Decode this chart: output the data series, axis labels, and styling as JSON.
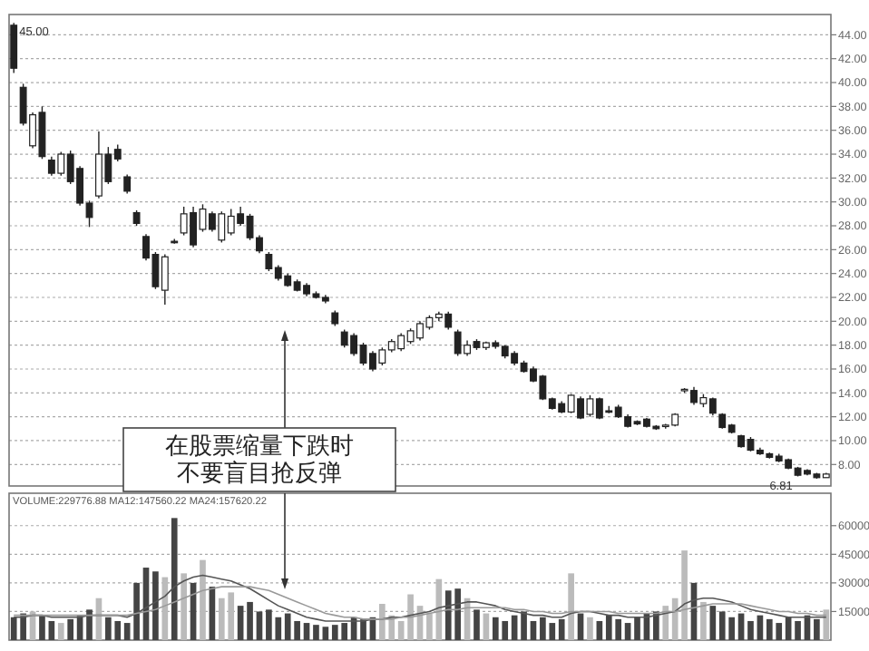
{
  "chart_data": [
    {
      "type": "candlestick",
      "categories": [
        null,
        null,
        null,
        null,
        null,
        null,
        null,
        null,
        null,
        null,
        null,
        null,
        null,
        null,
        null,
        null,
        null,
        null,
        null,
        null,
        null,
        null,
        null,
        null,
        null,
        null,
        null,
        null,
        null,
        null,
        null,
        null,
        null,
        null,
        null,
        null,
        null,
        null,
        null,
        null,
        null,
        null,
        null,
        null,
        null,
        null,
        null,
        null,
        null,
        null,
        null,
        null,
        null,
        null,
        null,
        null,
        null,
        null,
        null,
        null,
        null,
        null,
        null,
        null,
        null,
        null,
        null,
        null,
        null,
        null,
        null,
        null,
        null,
        null,
        null,
        null,
        null,
        null,
        null,
        null,
        null,
        null,
        null,
        null,
        null,
        null,
        null
      ],
      "ohlc": [
        [
          44.8,
          45.0,
          40.8,
          41.2
        ],
        [
          39.6,
          39.9,
          36.4,
          36.6
        ],
        [
          34.7,
          37.5,
          34.5,
          37.3
        ],
        [
          37.5,
          38.0,
          33.6,
          33.8
        ],
        [
          33.5,
          33.8,
          32.2,
          32.4
        ],
        [
          32.4,
          34.2,
          32.2,
          34.0
        ],
        [
          34.0,
          34.3,
          31.5,
          31.7
        ],
        [
          32.8,
          33.0,
          29.7,
          29.9
        ],
        [
          29.9,
          30.1,
          27.9,
          28.7
        ],
        [
          30.5,
          35.9,
          30.3,
          34.0
        ],
        [
          34.0,
          34.6,
          31.5,
          31.7
        ],
        [
          34.4,
          34.8,
          33.4,
          33.6
        ],
        [
          32.1,
          32.3,
          30.7,
          30.9
        ],
        [
          29.1,
          29.3,
          28.0,
          28.2
        ],
        [
          27.1,
          27.3,
          25.1,
          25.3
        ],
        [
          25.6,
          25.8,
          22.7,
          22.9
        ],
        [
          22.6,
          25.6,
          21.4,
          25.4
        ],
        [
          26.7,
          26.9,
          26.5,
          26.6
        ],
        [
          27.4,
          29.6,
          27.2,
          29.0
        ],
        [
          29.1,
          29.6,
          26.2,
          26.4
        ],
        [
          27.7,
          29.8,
          27.5,
          29.4
        ],
        [
          29.0,
          29.2,
          27.5,
          27.7
        ],
        [
          26.8,
          29.2,
          26.6,
          29.0
        ],
        [
          27.4,
          29.4,
          27.2,
          28.8
        ],
        [
          29.0,
          29.6,
          28.0,
          28.2
        ],
        [
          28.8,
          29.0,
          26.8,
          27.0
        ],
        [
          27.0,
          27.2,
          25.7,
          25.9
        ],
        [
          25.6,
          25.8,
          24.2,
          24.4
        ],
        [
          24.5,
          24.7,
          23.4,
          23.6
        ],
        [
          23.8,
          24.0,
          22.9,
          23.0
        ],
        [
          23.3,
          23.5,
          22.5,
          22.6
        ],
        [
          23.0,
          23.2,
          22.1,
          22.3
        ],
        [
          22.3,
          22.5,
          21.9,
          22.0
        ],
        [
          22.0,
          22.2,
          21.5,
          21.7
        ],
        [
          20.7,
          20.9,
          19.6,
          19.8
        ],
        [
          19.1,
          19.3,
          17.8,
          18.0
        ],
        [
          18.8,
          19.0,
          17.1,
          17.3
        ],
        [
          18.0,
          18.2,
          16.3,
          16.5
        ],
        [
          17.3,
          17.5,
          15.8,
          16.0
        ],
        [
          16.5,
          17.8,
          16.3,
          17.6
        ],
        [
          17.6,
          18.5,
          17.4,
          18.3
        ],
        [
          17.7,
          19.0,
          17.5,
          18.8
        ],
        [
          18.3,
          19.4,
          18.1,
          19.2
        ],
        [
          18.6,
          20.0,
          18.4,
          19.8
        ],
        [
          19.5,
          20.5,
          19.3,
          20.3
        ],
        [
          20.3,
          20.8,
          20.0,
          20.6
        ],
        [
          20.6,
          20.8,
          19.3,
          19.5
        ],
        [
          19.1,
          19.3,
          17.1,
          17.3
        ],
        [
          17.3,
          18.4,
          17.1,
          18.0
        ],
        [
          18.3,
          18.5,
          17.6,
          17.8
        ],
        [
          17.8,
          18.3,
          17.6,
          18.2
        ],
        [
          18.2,
          18.4,
          17.7,
          17.9
        ],
        [
          17.9,
          18.0,
          16.9,
          17.1
        ],
        [
          17.3,
          17.5,
          16.3,
          16.5
        ],
        [
          16.5,
          16.7,
          15.7,
          15.8
        ],
        [
          16.0,
          16.2,
          14.9,
          15.0
        ],
        [
          15.4,
          15.5,
          13.4,
          13.5
        ],
        [
          13.5,
          13.6,
          12.6,
          12.7
        ],
        [
          13.1,
          13.3,
          12.3,
          12.4
        ],
        [
          12.4,
          13.9,
          12.3,
          13.8
        ],
        [
          13.5,
          13.7,
          11.8,
          11.9
        ],
        [
          12.2,
          13.8,
          12.0,
          13.5
        ],
        [
          13.5,
          13.6,
          11.8,
          11.9
        ],
        [
          12.5,
          12.9,
          12.3,
          12.4
        ],
        [
          12.8,
          13.0,
          11.9,
          12.0
        ],
        [
          12.0,
          12.2,
          11.1,
          11.2
        ],
        [
          11.6,
          11.7,
          11.3,
          11.4
        ],
        [
          11.8,
          11.9,
          11.1,
          11.2
        ],
        [
          11.2,
          11.3,
          10.9,
          11.0
        ],
        [
          11.2,
          11.4,
          11.0,
          11.3
        ],
        [
          11.3,
          12.3,
          11.2,
          12.2
        ],
        [
          14.2,
          14.4,
          14.0,
          14.3
        ],
        [
          14.2,
          14.5,
          13.0,
          13.2
        ],
        [
          13.1,
          13.9,
          12.8,
          13.6
        ],
        [
          13.5,
          13.6,
          12.1,
          12.3
        ],
        [
          12.2,
          12.3,
          11.0,
          11.1
        ],
        [
          11.3,
          11.4,
          10.6,
          10.7
        ],
        [
          10.4,
          10.5,
          9.4,
          9.5
        ],
        [
          10.1,
          10.3,
          9.1,
          9.2
        ],
        [
          9.2,
          9.4,
          8.8,
          8.9
        ],
        [
          8.9,
          9.0,
          8.5,
          8.6
        ],
        [
          8.7,
          8.9,
          8.2,
          8.3
        ],
        [
          8.4,
          8.5,
          7.6,
          7.7
        ],
        [
          7.7,
          7.8,
          7.0,
          7.1
        ],
        [
          7.5,
          7.6,
          7.1,
          7.2
        ],
        [
          7.2,
          7.3,
          6.81,
          6.9
        ],
        [
          6.9,
          7.3,
          6.9,
          7.2
        ]
      ],
      "ylim": [
        6.2,
        45.7
      ],
      "yticks": [
        {
          "value": 8,
          "label": "8.00"
        },
        {
          "value": 10,
          "label": "10.00"
        },
        {
          "value": 12,
          "label": "12.00"
        },
        {
          "value": 14,
          "label": "14.00"
        },
        {
          "value": 16,
          "label": "16.00"
        },
        {
          "value": 18,
          "label": "18.00"
        },
        {
          "value": 20,
          "label": "20.00"
        },
        {
          "value": 22,
          "label": "22.00"
        },
        {
          "value": 24,
          "label": "24.00"
        },
        {
          "value": 26,
          "label": "26.00"
        },
        {
          "value": 28,
          "label": "28.00"
        },
        {
          "value": 30,
          "label": "30.00"
        },
        {
          "value": 32,
          "label": "32.00"
        },
        {
          "value": 34,
          "label": "34.00"
        },
        {
          "value": 36,
          "label": "36.00"
        },
        {
          "value": 38,
          "label": "38.00"
        },
        {
          "value": 40,
          "label": "40.00"
        },
        {
          "value": 42,
          "label": "42.00"
        },
        {
          "value": 44,
          "label": "44.00"
        }
      ],
      "grid": "y",
      "tick_labels": "y",
      "annotations": [
        "45.00",
        "6.81",
        "在股票缩量下跌时",
        "不要盲目抢反弹"
      ]
    },
    {
      "type": "bar",
      "categories": [
        null,
        null,
        null,
        null,
        null,
        null,
        null,
        null,
        null,
        null,
        null,
        null,
        null,
        null,
        null,
        null,
        null,
        null,
        null,
        null,
        null,
        null,
        null,
        null,
        null,
        null,
        null,
        null,
        null,
        null,
        null,
        null,
        null,
        null,
        null,
        null,
        null,
        null,
        null,
        null,
        null,
        null,
        null,
        null,
        null,
        null,
        null,
        null,
        null,
        null,
        null,
        null,
        null,
        null,
        null,
        null,
        null,
        null,
        null,
        null,
        null,
        null,
        null,
        null,
        null,
        null,
        null,
        null,
        null,
        null,
        null,
        null,
        null,
        null,
        null,
        null,
        null,
        null,
        null,
        null,
        null,
        null,
        null,
        null,
        null,
        null,
        null
      ],
      "series": [
        {
          "type": "bar",
          "values": [
            12000,
            14000,
            15000,
            13000,
            10000,
            9000,
            11000,
            13000,
            16000,
            22000,
            12000,
            10000,
            9000,
            30000,
            38000,
            36000,
            33000,
            64000,
            35000,
            30000,
            42000,
            28000,
            22000,
            25000,
            18000,
            20000,
            15000,
            16000,
            12000,
            14000,
            10000,
            9000,
            8000,
            7000,
            8000,
            9000,
            12000,
            11000,
            12000,
            19000,
            13000,
            10000,
            24000,
            18000,
            14000,
            32000,
            26000,
            27000,
            22000,
            16000,
            14000,
            12000,
            10000,
            13000,
            15000,
            10000,
            12000,
            9000,
            11000,
            35000,
            14000,
            12000,
            10000,
            13000,
            11000,
            9000,
            12000,
            14000,
            15000,
            18000,
            22000,
            47000,
            30000,
            20000,
            18000,
            15000,
            12000,
            14000,
            10000,
            13000,
            11000,
            9000,
            12000,
            10000,
            13000,
            11000,
            16000
          ],
          "colors": [
            "#444444",
            "#444444",
            "#bbbbbb",
            "#444444",
            "#444444",
            "#bbbbbb",
            "#444444",
            "#444444",
            "#444444",
            "#bbbbbb",
            "#444444",
            "#444444",
            "#444444",
            "#444444",
            "#444444",
            "#444444",
            "#bbbbbb",
            "#444444",
            "#bbbbbb",
            "#444444",
            "#bbbbbb",
            "#444444",
            "#bbbbbb",
            "#bbbbbb",
            "#444444",
            "#444444",
            "#444444",
            "#444444",
            "#444444",
            "#444444",
            "#444444",
            "#444444",
            "#444444",
            "#444444",
            "#444444",
            "#444444",
            "#444444",
            "#444444",
            "#444444",
            "#bbbbbb",
            "#bbbbbb",
            "#bbbbbb",
            "#bbbbbb",
            "#bbbbbb",
            "#bbbbbb",
            "#bbbbbb",
            "#444444",
            "#444444",
            "#bbbbbb",
            "#444444",
            "#bbbbbb",
            "#444444",
            "#444444",
            "#444444",
            "#444444",
            "#444444",
            "#444444",
            "#444444",
            "#444444",
            "#bbbbbb",
            "#444444",
            "#bbbbbb",
            "#444444",
            "#444444",
            "#444444",
            "#444444",
            "#444444",
            "#444444",
            "#444444",
            "#bbbbbb",
            "#bbbbbb",
            "#bbbbbb",
            "#444444",
            "#bbbbbb",
            "#444444",
            "#444444",
            "#444444",
            "#444444",
            "#444444",
            "#444444",
            "#444444",
            "#444444",
            "#444444",
            "#444444",
            "#444444",
            "#444444",
            "#bbbbbb"
          ]
        },
        {
          "type": "line",
          "color": "#555555",
          "values": [
            12000,
            12000,
            13000,
            13000,
            12000,
            12000,
            12000,
            12000,
            13000,
            13000,
            13000,
            13000,
            12000,
            14000,
            17000,
            20000,
            23000,
            28000,
            31000,
            33000,
            34000,
            33000,
            32000,
            31000,
            29000,
            27000,
            24000,
            21000,
            18000,
            16000,
            14000,
            12000,
            11000,
            10000,
            10000,
            10000,
            10000,
            10000,
            11000,
            11000,
            12000,
            12000,
            13000,
            14000,
            15000,
            17000,
            18000,
            19000,
            20000,
            20000,
            19000,
            18000,
            16000,
            15000,
            14000,
            13000,
            13000,
            12000,
            12000,
            14000,
            15000,
            15000,
            14000,
            13000,
            13000,
            12000,
            12000,
            12000,
            13000,
            14000,
            15000,
            19000,
            21000,
            22000,
            22000,
            21000,
            20000,
            18000,
            16000,
            15000,
            14000,
            13000,
            12000,
            12000,
            12000,
            12000,
            12000
          ]
        },
        {
          "type": "line",
          "color": "#999999",
          "values": [
            13000,
            13000,
            13000,
            13000,
            13000,
            13000,
            13000,
            13000,
            13000,
            13000,
            13000,
            13000,
            13000,
            14000,
            15000,
            16000,
            18000,
            20000,
            22000,
            24000,
            26000,
            27000,
            28000,
            28000,
            28000,
            28000,
            27000,
            26000,
            24000,
            22000,
            20000,
            18000,
            16000,
            14000,
            13000,
            12000,
            12000,
            11000,
            11000,
            11000,
            11000,
            12000,
            12000,
            13000,
            14000,
            15000,
            16000,
            16000,
            17000,
            17000,
            17000,
            17000,
            17000,
            16000,
            16000,
            15000,
            15000,
            14000,
            14000,
            15000,
            15000,
            15000,
            15000,
            15000,
            14000,
            14000,
            14000,
            14000,
            14000,
            15000,
            15000,
            16000,
            17000,
            18000,
            19000,
            19000,
            19000,
            19000,
            18000,
            17000,
            16000,
            15000,
            15000,
            14000,
            14000,
            13000,
            13000
          ]
        }
      ],
      "ylim": [
        0,
        77000
      ],
      "yticks": [
        15000,
        30000,
        45000,
        60000
      ],
      "grid": "y",
      "tick_labels": "y",
      "annotations": [
        "VOLUME:229776.88 MA12:147560.22 MA24:157620.22"
      ]
    }
  ]
}
